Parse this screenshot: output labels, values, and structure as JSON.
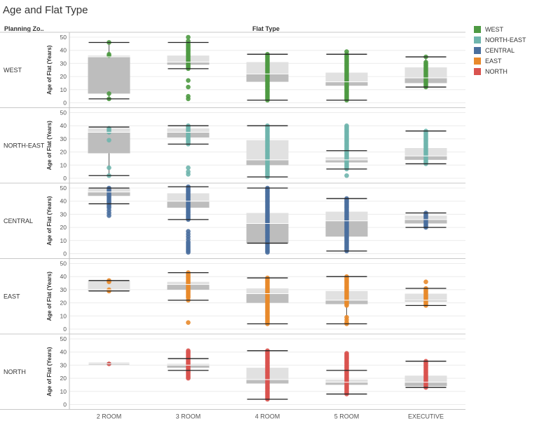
{
  "title": "Age and Flat Type",
  "header": {
    "row_field": "Planning Zo..",
    "column_field": "Flat Type"
  },
  "legend": [
    {
      "label": "WEST",
      "color": "#4e9a43"
    },
    {
      "label": "NORTH-EAST",
      "color": "#6fb5ad"
    },
    {
      "label": "CENTRAL",
      "color": "#4a6f9e"
    },
    {
      "label": "EAST",
      "color": "#e8892b"
    },
    {
      "label": "NORTH",
      "color": "#d9534f"
    }
  ],
  "chart_data": {
    "type": "box",
    "title": "Age and Flat Type",
    "xlabel": "Flat Type",
    "ylabel": "Age of Flat (Years)",
    "ylim": [
      0,
      50
    ],
    "yticks": [
      0,
      10,
      20,
      30,
      40,
      50
    ],
    "categories": [
      "2 ROOM",
      "3 ROOM",
      "4 ROOM",
      "5 ROOM",
      "EXECUTIVE"
    ],
    "rows": [
      "WEST",
      "NORTH-EAST",
      "CENTRAL",
      "EAST",
      "NORTH"
    ],
    "panels": [
      {
        "zone": "WEST",
        "color": "#4e9a43",
        "boxes": [
          {
            "category": "2 ROOM",
            "min": 3,
            "q1": 7,
            "median": 35,
            "q3": 36,
            "max": 46,
            "points": [
              46,
              37,
              36,
              7,
              3
            ]
          },
          {
            "category": "3 ROOM",
            "min": 26,
            "q1": 29,
            "median": 31,
            "q3": 36,
            "max": 46,
            "points": [
              50,
              47,
              45,
              44,
              43,
              42,
              41,
              40,
              39,
              38,
              37,
              36,
              35,
              34,
              33,
              32,
              31,
              30,
              29,
              28,
              27,
              26,
              17,
              12,
              5,
              3
            ]
          },
          {
            "category": "4 ROOM",
            "min": 2,
            "q1": 16,
            "median": 22,
            "q3": 31,
            "max": 37,
            "points": [
              37,
              36,
              35,
              34,
              33,
              32,
              31,
              30,
              29,
              28,
              27,
              26,
              25,
              24,
              23,
              22,
              21,
              20,
              19,
              18,
              17,
              16,
              15,
              14,
              13,
              12,
              11,
              10,
              9,
              8,
              7,
              6,
              5,
              4,
              3,
              2
            ]
          },
          {
            "category": "5 ROOM",
            "min": 2,
            "q1": 13,
            "median": 16,
            "q3": 23,
            "max": 37,
            "points": [
              39,
              37,
              36,
              35,
              34,
              33,
              32,
              31,
              30,
              29,
              28,
              27,
              26,
              25,
              24,
              23,
              22,
              21,
              20,
              19,
              18,
              17,
              16,
              15,
              14,
              13,
              12,
              11,
              10,
              9,
              8,
              7,
              6,
              5,
              4,
              3,
              2
            ]
          },
          {
            "category": "EXECUTIVE",
            "min": 12,
            "q1": 15,
            "median": 19,
            "q3": 27,
            "max": 35,
            "points": [
              35,
              31,
              30,
              29,
              28,
              27,
              26,
              25,
              24,
              23,
              22,
              21,
              20,
              19,
              18,
              17,
              16,
              15,
              14,
              13,
              12
            ]
          }
        ]
      },
      {
        "zone": "NORTH-EAST",
        "color": "#6fb5ad",
        "boxes": [
          {
            "category": "2 ROOM",
            "min": 2,
            "q1": 19,
            "median": 35,
            "q3": 38,
            "max": 39,
            "points": [
              38,
              37,
              36,
              35,
              29,
              8,
              2
            ]
          },
          {
            "category": "3 ROOM",
            "min": 26,
            "q1": 31,
            "median": 35,
            "q3": 38,
            "max": 40,
            "points": [
              40,
              39,
              38,
              37,
              36,
              35,
              34,
              33,
              32,
              31,
              30,
              29,
              28,
              27,
              26,
              8,
              5,
              3
            ]
          },
          {
            "category": "4 ROOM",
            "min": 1,
            "q1": 10,
            "median": 14,
            "q3": 29,
            "max": 40,
            "points": [
              40,
              39,
              38,
              37,
              36,
              35,
              34,
              33,
              32,
              31,
              30,
              29,
              28,
              27,
              26,
              25,
              24,
              23,
              22,
              21,
              20,
              19,
              18,
              17,
              16,
              15,
              14,
              13,
              12,
              11,
              10,
              9,
              8,
              7,
              6,
              5,
              4,
              3,
              2,
              1
            ]
          },
          {
            "category": "5 ROOM",
            "min": 7,
            "q1": 12,
            "median": 14,
            "q3": 16,
            "max": 21,
            "points": [
              40,
              39,
              38,
              37,
              36,
              35,
              34,
              33,
              32,
              31,
              30,
              29,
              28,
              27,
              26,
              25,
              24,
              23,
              22,
              21,
              20,
              19,
              18,
              17,
              16,
              15,
              14,
              13,
              12,
              11,
              10,
              9,
              8,
              7,
              2
            ]
          },
          {
            "category": "EXECUTIVE",
            "min": 11,
            "q1": 14,
            "median": 17,
            "q3": 23,
            "max": 36,
            "points": [
              36,
              35,
              34,
              33,
              32,
              31,
              30,
              29,
              28,
              27,
              26,
              25,
              24,
              23,
              22,
              21,
              20,
              19,
              18,
              17,
              16,
              15,
              14,
              13,
              12,
              11
            ]
          }
        ]
      },
      {
        "zone": "CENTRAL",
        "color": "#4a6f9e",
        "boxes": [
          {
            "category": "2 ROOM",
            "min": 38,
            "q1": 44,
            "median": 47,
            "q3": 50,
            "max": 50,
            "points": [
              50,
              49,
              48,
              47,
              46,
              45,
              44,
              43,
              42,
              41,
              40,
              39,
              38,
              37,
              36,
              35,
              33,
              31,
              29
            ]
          },
          {
            "category": "3 ROOM",
            "min": 26,
            "q1": 35,
            "median": 40,
            "q3": 46,
            "max": 51,
            "points": [
              51,
              50,
              49,
              48,
              47,
              46,
              45,
              44,
              43,
              42,
              41,
              40,
              39,
              38,
              37,
              36,
              35,
              34,
              33,
              32,
              31,
              30,
              29,
              28,
              27,
              26,
              17,
              15,
              13,
              11,
              9,
              8,
              7,
              6,
              5,
              4,
              3,
              2,
              1
            ]
          },
          {
            "category": "4 ROOM",
            "min": 8,
            "q1": 8,
            "median": 23,
            "q3": 31,
            "max": 50,
            "points": [
              50,
              49,
              48,
              47,
              46,
              45,
              44,
              43,
              42,
              41,
              40,
              39,
              38,
              37,
              36,
              35,
              34,
              33,
              32,
              31,
              30,
              29,
              28,
              27,
              26,
              25,
              24,
              23,
              22,
              21,
              20,
              19,
              18,
              17,
              16,
              15,
              14,
              13,
              12,
              11,
              10,
              9,
              8,
              7,
              6,
              5,
              4,
              3,
              2,
              1
            ]
          },
          {
            "category": "5 ROOM",
            "min": 2,
            "q1": 13,
            "median": 25,
            "q3": 32,
            "max": 42,
            "points": [
              42,
              41,
              40,
              39,
              38,
              37,
              36,
              35,
              34,
              33,
              32,
              31,
              30,
              29,
              28,
              27,
              26,
              25,
              24,
              23,
              22,
              21,
              20,
              19,
              18,
              17,
              16,
              15,
              14,
              13,
              12,
              11,
              10,
              9,
              8,
              7,
              6,
              5,
              4,
              3,
              2
            ]
          },
          {
            "category": "EXECUTIVE",
            "min": 20,
            "q1": 23,
            "median": 26,
            "q3": 29,
            "max": 31,
            "points": [
              31,
              30,
              29,
              28,
              27,
              26,
              25,
              24,
              23,
              22,
              21,
              20
            ]
          }
        ]
      },
      {
        "zone": "EAST",
        "color": "#e8892b",
        "boxes": [
          {
            "category": "2 ROOM",
            "min": 29,
            "q1": 29,
            "median": 30,
            "q3": 37,
            "max": 37,
            "points": [
              37,
              36,
              30,
              29
            ]
          },
          {
            "category": "3 ROOM",
            "min": 22,
            "q1": 30,
            "median": 34,
            "q3": 36,
            "max": 43,
            "points": [
              43,
              42,
              41,
              40,
              39,
              38,
              37,
              36,
              35,
              34,
              33,
              32,
              31,
              30,
              29,
              28,
              27,
              26,
              25,
              24,
              22,
              5
            ]
          },
          {
            "category": "4 ROOM",
            "min": 4,
            "q1": 20,
            "median": 27,
            "q3": 31,
            "max": 39,
            "points": [
              39,
              38,
              37,
              36,
              35,
              34,
              33,
              32,
              31,
              30,
              29,
              28,
              27,
              26,
              25,
              24,
              23,
              22,
              21,
              20,
              19,
              18,
              17,
              16,
              15,
              14,
              13,
              12,
              11,
              10,
              9,
              8,
              7,
              6,
              5,
              4
            ]
          },
          {
            "category": "5 ROOM",
            "min": 4,
            "q1": 19,
            "median": 22,
            "q3": 29,
            "max": 40,
            "points": [
              40,
              39,
              38,
              37,
              36,
              35,
              34,
              33,
              32,
              31,
              30,
              29,
              28,
              27,
              26,
              25,
              24,
              23,
              22,
              21,
              20,
              19,
              18,
              9,
              7,
              5,
              4
            ]
          },
          {
            "category": "EXECUTIVE",
            "min": 18,
            "q1": 21,
            "median": 22,
            "q3": 27,
            "max": 31,
            "points": [
              36,
              31,
              30,
              29,
              28,
              27,
              26,
              25,
              24,
              23,
              22,
              21,
              20,
              19,
              18
            ]
          }
        ]
      },
      {
        "zone": "NORTH",
        "color": "#d9534f",
        "boxes": [
          {
            "category": "2 ROOM",
            "min": 31,
            "q1": 31,
            "median": 31,
            "q3": 31,
            "max": 31,
            "points": [
              31
            ]
          },
          {
            "category": "3 ROOM",
            "min": 26,
            "q1": 28,
            "median": 30,
            "q3": 31,
            "max": 35,
            "points": [
              41,
              40,
              39,
              38,
              37,
              36,
              35,
              34,
              33,
              32,
              31,
              30,
              29,
              28,
              27,
              26,
              25,
              24,
              23,
              22,
              21,
              20
            ]
          },
          {
            "category": "4 ROOM",
            "min": 4,
            "q1": 16,
            "median": 19,
            "q3": 28,
            "max": 41,
            "points": [
              41,
              40,
              39,
              38,
              37,
              36,
              35,
              34,
              33,
              32,
              31,
              30,
              29,
              28,
              27,
              26,
              25,
              24,
              23,
              22,
              21,
              20,
              19,
              18,
              17,
              16,
              15,
              14,
              13,
              12,
              11,
              10,
              9,
              8,
              7,
              6,
              5,
              4
            ]
          },
          {
            "category": "5 ROOM",
            "min": 8,
            "q1": 15,
            "median": 17,
            "q3": 19,
            "max": 26,
            "points": [
              39,
              38,
              37,
              36,
              35,
              34,
              33,
              32,
              31,
              30,
              29,
              28,
              27,
              26,
              25,
              24,
              23,
              22,
              21,
              20,
              19,
              18,
              17,
              16,
              15,
              14,
              13,
              12,
              11,
              10,
              9,
              8
            ]
          },
          {
            "category": "EXECUTIVE",
            "min": 13,
            "q1": 14,
            "median": 17,
            "q3": 22,
            "max": 33,
            "points": [
              33,
              32,
              31,
              30,
              29,
              28,
              27,
              26,
              25,
              24,
              23,
              22,
              21,
              20,
              19,
              18,
              17,
              16,
              15,
              14,
              13
            ]
          }
        ]
      }
    ]
  }
}
